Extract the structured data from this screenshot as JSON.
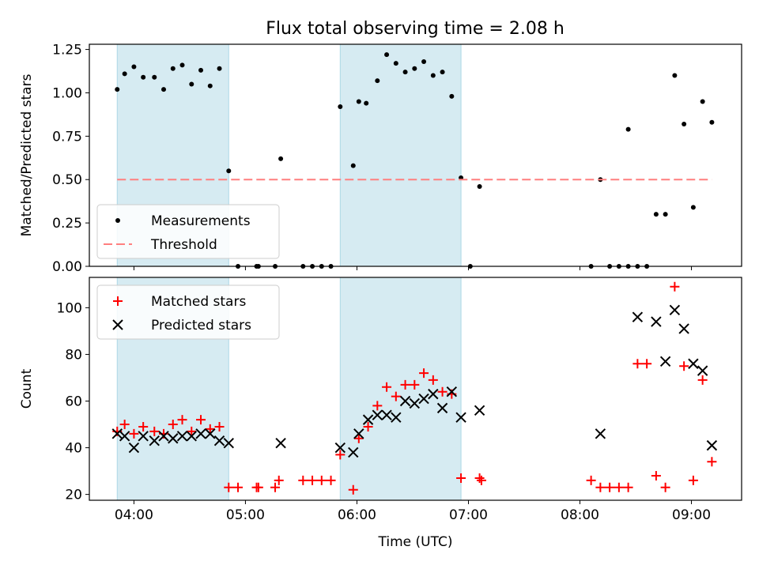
{
  "title": "Flux total observing time = 2.08 h",
  "colors": {
    "shade": "#add8e6",
    "threshold": "#ff7f7f",
    "matched": "#ff0000",
    "predicted": "#000000"
  },
  "chart_data": [
    {
      "type": "scatter",
      "panel": "top",
      "ylabel": "Matched/Predicted stars",
      "xlabel": "",
      "xlim": [
        "03:36",
        "09:27"
      ],
      "ylim": [
        0,
        1.28
      ],
      "yticks": [
        "0.00",
        "0.25",
        "0.50",
        "0.75",
        "1.00",
        "1.25"
      ],
      "xticks": [
        "04:00",
        "05:00",
        "06:00",
        "07:00",
        "08:00",
        "09:00"
      ],
      "shaded_intervals": [
        [
          "03:51",
          "04:51"
        ],
        [
          "05:51",
          "06:56"
        ]
      ],
      "legend_position": "lower-left",
      "series": [
        {
          "name": "Measurements",
          "marker": "dot",
          "points": [
            [
              "03:51",
              1.02
            ],
            [
              "03:55",
              1.11
            ],
            [
              "04:00",
              1.15
            ],
            [
              "04:05",
              1.09
            ],
            [
              "04:11",
              1.09
            ],
            [
              "04:16",
              1.02
            ],
            [
              "04:21",
              1.14
            ],
            [
              "04:26",
              1.16
            ],
            [
              "04:31",
              1.05
            ],
            [
              "04:36",
              1.13
            ],
            [
              "04:41",
              1.04
            ],
            [
              "04:46",
              1.14
            ],
            [
              "04:51",
              0.55
            ],
            [
              "04:56",
              0.0
            ],
            [
              "05:06",
              0.0
            ],
            [
              "05:07",
              0.0
            ],
            [
              "05:16",
              0.0
            ],
            [
              "05:19",
              0.62
            ],
            [
              "05:31",
              0.0
            ],
            [
              "05:36",
              0.0
            ],
            [
              "05:41",
              0.0
            ],
            [
              "05:46",
              0.0
            ],
            [
              "05:51",
              0.92
            ],
            [
              "05:58",
              0.58
            ],
            [
              "06:01",
              0.95
            ],
            [
              "06:05",
              0.94
            ],
            [
              "06:11",
              1.07
            ],
            [
              "06:16",
              1.22
            ],
            [
              "06:21",
              1.17
            ],
            [
              "06:26",
              1.12
            ],
            [
              "06:31",
              1.14
            ],
            [
              "06:36",
              1.18
            ],
            [
              "06:41",
              1.1
            ],
            [
              "06:46",
              1.12
            ],
            [
              "06:51",
              0.98
            ],
            [
              "06:56",
              0.51
            ],
            [
              "07:01",
              0.0
            ],
            [
              "07:06",
              0.46
            ],
            [
              "08:06",
              0.0
            ],
            [
              "08:11",
              0.5
            ],
            [
              "08:16",
              0.0
            ],
            [
              "08:21",
              0.0
            ],
            [
              "08:26",
              0.0
            ],
            [
              "08:31",
              0.0
            ],
            [
              "08:26",
              0.79
            ],
            [
              "08:36",
              0.0
            ],
            [
              "08:41",
              0.3
            ],
            [
              "08:46",
              0.3
            ],
            [
              "08:51",
              1.1
            ],
            [
              "08:56",
              0.82
            ],
            [
              "09:01",
              0.34
            ],
            [
              "09:06",
              0.95
            ],
            [
              "09:11",
              0.83
            ]
          ]
        },
        {
          "name": "Threshold",
          "style": "dashed",
          "points": [
            [
              "03:51",
              0.5
            ],
            [
              "09:11",
              0.5
            ]
          ]
        }
      ]
    },
    {
      "type": "scatter",
      "panel": "bottom",
      "ylabel": "Count",
      "xlabel": "Time (UTC)",
      "xlim": [
        "03:36",
        "09:27"
      ],
      "ylim": [
        17.5,
        113
      ],
      "yticks": [
        "20",
        "40",
        "60",
        "80",
        "100"
      ],
      "xticks": [
        "04:00",
        "05:00",
        "06:00",
        "07:00",
        "08:00",
        "09:00"
      ],
      "shaded_intervals": [
        [
          "03:51",
          "04:51"
        ],
        [
          "05:51",
          "06:56"
        ]
      ],
      "legend_position": "upper-left",
      "series": [
        {
          "name": "Matched stars",
          "marker": "plus",
          "points": [
            [
              "03:51",
              47
            ],
            [
              "03:55",
              50
            ],
            [
              "04:00",
              46
            ],
            [
              "04:05",
              49
            ],
            [
              "04:11",
              47
            ],
            [
              "04:16",
              46
            ],
            [
              "04:21",
              50
            ],
            [
              "04:26",
              52
            ],
            [
              "04:31",
              47
            ],
            [
              "04:36",
              52
            ],
            [
              "04:41",
              48
            ],
            [
              "04:46",
              49
            ],
            [
              "04:51",
              23
            ],
            [
              "04:56",
              23
            ],
            [
              "05:06",
              23
            ],
            [
              "05:07",
              23
            ],
            [
              "05:16",
              23
            ],
            [
              "05:18",
              26
            ],
            [
              "05:31",
              26
            ],
            [
              "05:36",
              26
            ],
            [
              "05:41",
              26
            ],
            [
              "05:46",
              26
            ],
            [
              "05:51",
              37
            ],
            [
              "05:58",
              22
            ],
            [
              "06:01",
              44
            ],
            [
              "06:06",
              49
            ],
            [
              "06:11",
              58
            ],
            [
              "06:16",
              66
            ],
            [
              "06:21",
              62
            ],
            [
              "06:26",
              67
            ],
            [
              "06:31",
              67
            ],
            [
              "06:36",
              72
            ],
            [
              "06:41",
              69
            ],
            [
              "06:46",
              64
            ],
            [
              "06:51",
              63
            ],
            [
              "06:56",
              27
            ],
            [
              "07:06",
              27
            ],
            [
              "07:07",
              26
            ],
            [
              "08:06",
              26
            ],
            [
              "08:11",
              23
            ],
            [
              "08:16",
              23
            ],
            [
              "08:21",
              23
            ],
            [
              "08:26",
              23
            ],
            [
              "08:31",
              76
            ],
            [
              "08:36",
              76
            ],
            [
              "08:41",
              28
            ],
            [
              "08:46",
              23
            ],
            [
              "08:51",
              109
            ],
            [
              "08:56",
              75
            ],
            [
              "09:01",
              26
            ],
            [
              "09:06",
              69
            ],
            [
              "09:11",
              34
            ]
          ]
        },
        {
          "name": "Predicted stars",
          "marker": "x",
          "points": [
            [
              "03:51",
              46
            ],
            [
              "03:55",
              45
            ],
            [
              "04:00",
              40
            ],
            [
              "04:05",
              45
            ],
            [
              "04:11",
              43
            ],
            [
              "04:16",
              45
            ],
            [
              "04:21",
              44
            ],
            [
              "04:26",
              45
            ],
            [
              "04:31",
              45
            ],
            [
              "04:36",
              46
            ],
            [
              "04:41",
              46
            ],
            [
              "04:46",
              43
            ],
            [
              "04:51",
              42
            ],
            [
              "05:19",
              42
            ],
            [
              "05:51",
              40
            ],
            [
              "05:58",
              38
            ],
            [
              "06:01",
              46
            ],
            [
              "06:06",
              52
            ],
            [
              "06:11",
              54
            ],
            [
              "06:16",
              54
            ],
            [
              "06:21",
              53
            ],
            [
              "06:26",
              60
            ],
            [
              "06:31",
              59
            ],
            [
              "06:36",
              61
            ],
            [
              "06:41",
              63
            ],
            [
              "06:46",
              57
            ],
            [
              "06:51",
              64
            ],
            [
              "06:56",
              53
            ],
            [
              "07:06",
              56
            ],
            [
              "08:11",
              46
            ],
            [
              "08:31",
              96
            ],
            [
              "08:41",
              94
            ],
            [
              "08:46",
              77
            ],
            [
              "08:51",
              99
            ],
            [
              "08:56",
              91
            ],
            [
              "09:01",
              76
            ],
            [
              "09:06",
              73
            ],
            [
              "09:11",
              41
            ]
          ]
        }
      ]
    }
  ]
}
